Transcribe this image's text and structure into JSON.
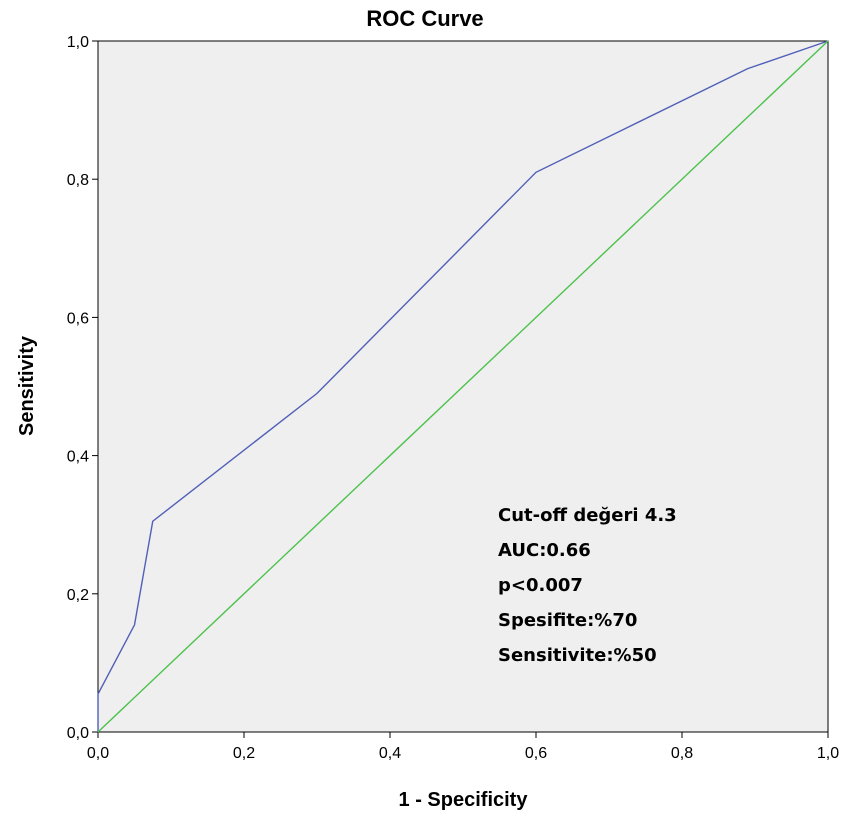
{
  "chart_data": {
    "type": "line",
    "title": "ROC Curve",
    "xlabel": "1 - Specificity",
    "ylabel": "Sensitivity",
    "xlim": [
      0,
      1
    ],
    "ylim": [
      0,
      1
    ],
    "x_ticks": [
      "0,0",
      "0,2",
      "0,4",
      "0,6",
      "0,8",
      "1,0"
    ],
    "y_ticks": [
      "0,0",
      "0,2",
      "0,4",
      "0,6",
      "0,8",
      "1,0"
    ],
    "grid": false,
    "series": [
      {
        "x": [
          0.0,
          0.0,
          0.05,
          0.075,
          0.3,
          0.6,
          0.89,
          1.0
        ],
        "y": [
          0.0,
          0.055,
          0.155,
          0.305,
          0.49,
          0.81,
          0.96,
          1.0
        ],
        "color": "#5060b8"
      },
      {
        "x": [
          0.0,
          1.0
        ],
        "y": [
          0.0,
          1.0
        ],
        "color": "#4cc24c"
      }
    ],
    "annotations": [
      "Cut-off değeri 4.3",
      "AUC:0.66",
      "p<0.007",
      "Spesifite:%70",
      "Sensitivite:%50"
    ],
    "plot_background": "#efefef"
  }
}
